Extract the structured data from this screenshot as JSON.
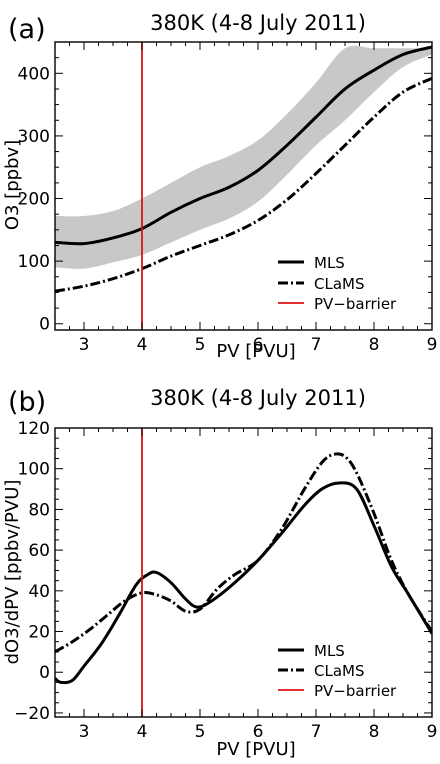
{
  "charts": [
    {
      "panel_label": "(a)",
      "title": "380K (4-8 July 2011)",
      "xlabel": "PV [PVU]",
      "ylabel": "O3 [ppbv]",
      "legend": [
        "MLS",
        "CLaMS",
        "PV−barrier"
      ]
    },
    {
      "panel_label": "(b)",
      "title": "380K (4-8 July 2011)",
      "xlabel": "PV [PVU]",
      "ylabel": "dO3/dPV [ppbv/PVU]",
      "legend": [
        "MLS",
        "CLaMS",
        "PV−barrier"
      ]
    }
  ],
  "chart_data": [
    {
      "type": "line",
      "title": "380K (4-8 July 2011)",
      "xlabel": "PV [PVU]",
      "ylabel": "O3 [ppbv]",
      "xlim": [
        2.5,
        9
      ],
      "ylim": [
        -10,
        450
      ],
      "xticks": [
        3,
        4,
        5,
        6,
        7,
        8,
        9
      ],
      "yticks": [
        0,
        100,
        200,
        300,
        400
      ],
      "grid": false,
      "legend_position": "bottom-right",
      "series": [
        {
          "name": "MLS",
          "style": "solid",
          "color": "#000000",
          "x": [
            2.5,
            3.0,
            3.5,
            4.0,
            4.5,
            5.0,
            5.5,
            6.0,
            6.5,
            7.0,
            7.5,
            8.0,
            8.5,
            9.0
          ],
          "y": [
            130,
            128,
            137,
            152,
            178,
            200,
            218,
            245,
            285,
            330,
            375,
            405,
            430,
            442
          ]
        },
        {
          "name": "CLaMS",
          "style": "dash-dot",
          "color": "#000000",
          "x": [
            2.5,
            3.0,
            3.5,
            4.0,
            4.5,
            5.0,
            5.5,
            6.0,
            6.5,
            7.0,
            7.5,
            8.0,
            8.5,
            9.0
          ],
          "y": [
            52,
            60,
            72,
            88,
            108,
            125,
            142,
            165,
            198,
            240,
            285,
            330,
            370,
            392
          ]
        },
        {
          "name": "MLS spread",
          "style": "band",
          "color": "#c8c8c8",
          "x": [
            2.5,
            3.0,
            3.5,
            4.0,
            4.5,
            5.0,
            5.5,
            6.0,
            6.5,
            7.0,
            7.5,
            8.0,
            8.5,
            9.0
          ],
          "upper": [
            172,
            172,
            180,
            200,
            225,
            250,
            268,
            293,
            335,
            385,
            440,
            440,
            440,
            440
          ],
          "lower": [
            90,
            88,
            98,
            110,
            130,
            150,
            168,
            195,
            238,
            285,
            325,
            370,
            410,
            430
          ]
        },
        {
          "name": "PV−barrier",
          "style": "vline",
          "color": "#dd1111",
          "x": 4.0
        }
      ]
    },
    {
      "type": "line",
      "title": "380K (4-8 July 2011)",
      "xlabel": "PV [PVU]",
      "ylabel": "dO3/dPV [ppbv/PVU]",
      "xlim": [
        2.5,
        9
      ],
      "ylim": [
        -22,
        120
      ],
      "xticks": [
        3,
        4,
        5,
        6,
        7,
        8,
        9
      ],
      "yticks": [
        -20,
        0,
        20,
        40,
        60,
        80,
        100,
        120
      ],
      "grid": false,
      "legend_position": "bottom-right",
      "series": [
        {
          "name": "MLS",
          "style": "solid",
          "color": "#000000",
          "x": [
            2.5,
            2.6,
            2.8,
            3.0,
            3.3,
            3.6,
            3.9,
            4.1,
            4.25,
            4.5,
            4.75,
            4.95,
            5.2,
            5.6,
            6.0,
            6.4,
            6.8,
            7.1,
            7.4,
            7.7,
            8.0,
            8.3,
            8.6,
            9.0
          ],
          "y": [
            -3,
            -5,
            -4,
            3,
            14,
            28,
            43,
            48,
            49,
            44,
            36,
            32,
            35,
            44,
            55,
            68,
            82,
            90,
            93,
            90,
            72,
            52,
            38,
            19
          ]
        },
        {
          "name": "CLaMS",
          "style": "dash-dot",
          "color": "#000000",
          "x": [
            2.5,
            2.8,
            3.1,
            3.4,
            3.7,
            4.0,
            4.25,
            4.5,
            4.75,
            5.0,
            5.3,
            5.6,
            6.0,
            6.4,
            6.8,
            7.1,
            7.3,
            7.5,
            7.7,
            8.0,
            8.3,
            8.6,
            9.0
          ],
          "y": [
            10,
            15,
            21,
            28,
            35,
            39,
            38,
            35,
            30,
            31,
            41,
            48,
            55,
            70,
            90,
            103,
            107,
            106,
            98,
            78,
            55,
            38,
            20
          ]
        },
        {
          "name": "PV−barrier",
          "style": "vline",
          "color": "#dd1111",
          "x": 4.0
        }
      ]
    }
  ]
}
